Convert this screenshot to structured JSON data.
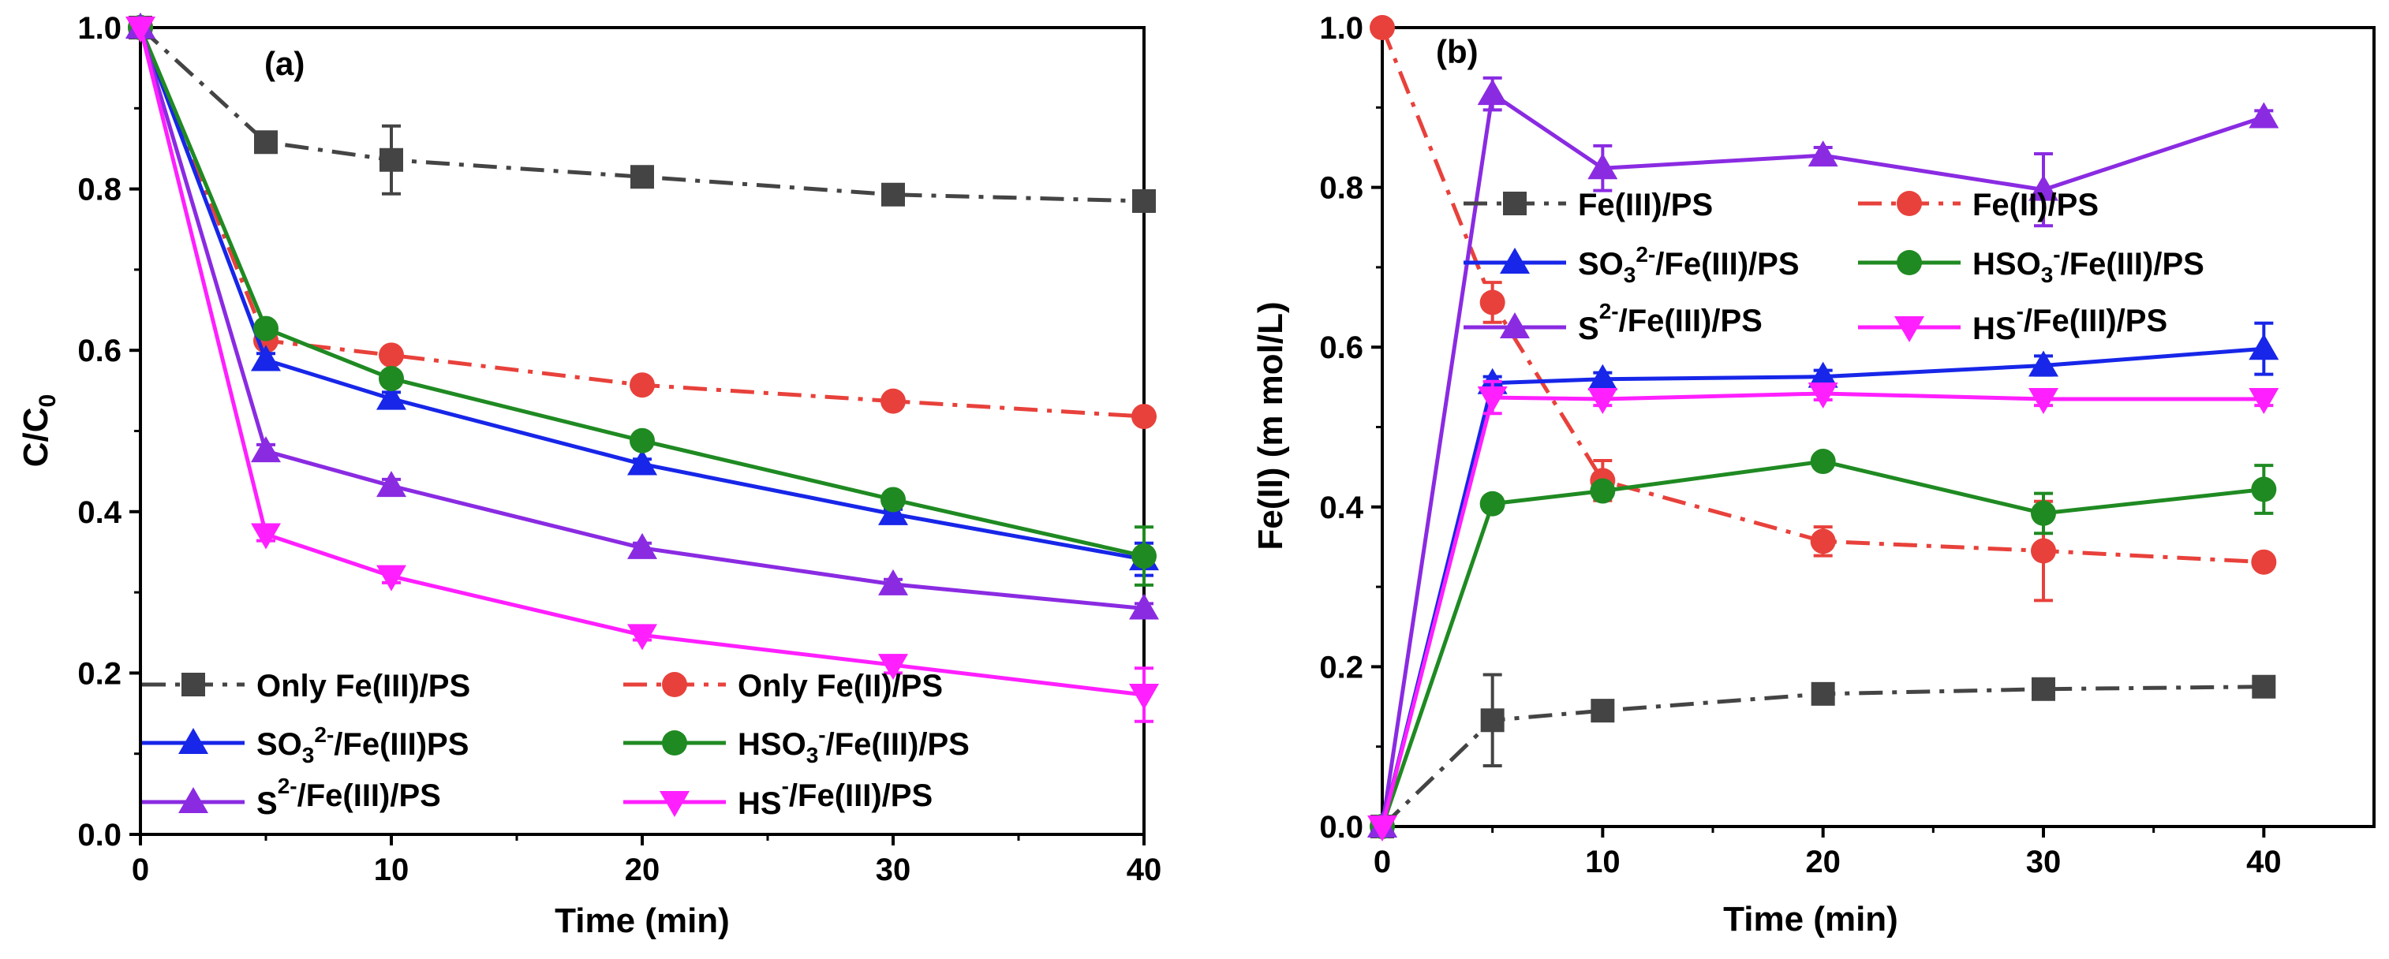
{
  "chart_data": [
    {
      "type": "line",
      "panel_label": "(a)",
      "xlabel": "Time (min)",
      "ylabel": "C/C0",
      "ylabel_parts": {
        "main": "C/C",
        "sub": "0"
      },
      "xlim": [
        0,
        40
      ],
      "ylim": [
        0,
        1.0
      ],
      "xticks": [
        0,
        10,
        20,
        30,
        40
      ],
      "xtick_labels": [
        "0",
        "10",
        "20",
        "30",
        "40"
      ],
      "yticks": [
        0,
        0.2,
        0.4,
        0.6,
        0.8,
        1.0
      ],
      "ytick_labels": [
        "0.0",
        "0.2",
        "0.4",
        "0.6",
        "0.8",
        "1.0"
      ],
      "legend_position": "bottom-left",
      "series": [
        {
          "id": "a_fe3",
          "name": "Only Fe(III)/PS",
          "name_parts": [
            [
              "Only Fe(III)/PS",
              ""
            ]
          ],
          "color": "#444444",
          "marker": "square",
          "dash": "dashdot",
          "x": [
            0,
            5,
            10,
            20,
            30,
            40
          ],
          "y": [
            1.0,
            0.858,
            0.836,
            0.815,
            0.793,
            0.785
          ],
          "err": [
            0,
            0.012,
            0.042,
            0.008,
            0.006,
            0.006
          ]
        },
        {
          "id": "a_fe2",
          "name": "Only Fe(II)/PS",
          "name_parts": [
            [
              "Only Fe(II)/PS",
              ""
            ]
          ],
          "color": "#e8413b",
          "marker": "circle",
          "dash": "dashdot",
          "x": [
            0,
            5,
            10,
            20,
            30,
            40
          ],
          "y": [
            1.0,
            0.612,
            0.594,
            0.557,
            0.537,
            0.518
          ],
          "err": [
            0,
            0.008,
            0.008,
            0.006,
            0.006,
            0.006
          ]
        },
        {
          "id": "a_so3",
          "name": "SO32-/Fe(III)PS",
          "name_parts": [
            [
              "SO",
              ""
            ],
            [
              "3",
              "sub"
            ],
            [
              "2-",
              "sup"
            ],
            [
              "/Fe(III)PS",
              ""
            ]
          ],
          "color": "#1726e8",
          "marker": "triangle-up",
          "dash": "solid",
          "x": [
            0,
            5,
            10,
            20,
            30,
            40
          ],
          "y": [
            1.0,
            0.588,
            0.54,
            0.459,
            0.397,
            0.341
          ],
          "err": [
            0,
            0.008,
            0.008,
            0.006,
            0.006,
            0.02
          ]
        },
        {
          "id": "a_hso3",
          "name": "HSO3-/Fe(III)/PS",
          "name_parts": [
            [
              "HSO",
              ""
            ],
            [
              "3",
              "sub"
            ],
            [
              "-",
              "sup"
            ],
            [
              "/Fe(III)/PS",
              ""
            ]
          ],
          "color": "#1f8a22",
          "marker": "circle",
          "dash": "solid",
          "x": [
            0,
            5,
            10,
            20,
            30,
            40
          ],
          "y": [
            1.0,
            0.627,
            0.565,
            0.488,
            0.415,
            0.345
          ],
          "err": [
            0,
            0.008,
            0.008,
            0.006,
            0.006,
            0.036
          ]
        },
        {
          "id": "a_s2",
          "name": "S2-/Fe(III)/PS",
          "name_parts": [
            [
              "S",
              ""
            ],
            [
              "2-",
              "sup"
            ],
            [
              "/Fe(III)/PS",
              ""
            ]
          ],
          "color": "#8a2be2",
          "marker": "triangle-up",
          "dash": "solid",
          "x": [
            0,
            5,
            10,
            20,
            30,
            40
          ],
          "y": [
            1.0,
            0.475,
            0.432,
            0.355,
            0.31,
            0.28
          ],
          "err": [
            0,
            0.008,
            0.008,
            0.006,
            0.006,
            0.006
          ]
        },
        {
          "id": "a_hs",
          "name": "HS-/Fe(III)/PS",
          "name_parts": [
            [
              "HS",
              ""
            ],
            [
              "-",
              "sup"
            ],
            [
              "/Fe(III)/PS",
              ""
            ]
          ],
          "color": "#ff1fff",
          "marker": "triangle-down",
          "dash": "solid",
          "x": [
            0,
            5,
            10,
            20,
            30,
            40
          ],
          "y": [
            1.0,
            0.372,
            0.32,
            0.247,
            0.21,
            0.173
          ],
          "err": [
            0,
            0.008,
            0.008,
            0.006,
            0.01,
            0.033
          ]
        }
      ]
    },
    {
      "type": "line",
      "panel_label": "(b)",
      "xlabel": "Time (min)",
      "ylabel": "Fe(II) (m mol/L)",
      "xlim": [
        0,
        45
      ],
      "ylim": [
        0,
        1.0
      ],
      "xticks": [
        0,
        10,
        20,
        30,
        40
      ],
      "xtick_labels": [
        "0",
        "10",
        "20",
        "30",
        "40"
      ],
      "yticks": [
        0,
        0.2,
        0.4,
        0.6,
        0.8,
        1.0
      ],
      "ytick_labels": [
        "0.0",
        "0.2",
        "0.4",
        "0.6",
        "0.8",
        "1.0"
      ],
      "legend_position": "top-left",
      "series": [
        {
          "id": "b_fe3",
          "name": "Fe(III)/PS",
          "name_parts": [
            [
              "Fe(III)/PS",
              ""
            ]
          ],
          "color": "#444444",
          "marker": "square",
          "dash": "dashdot",
          "x": [
            0,
            5,
            10,
            20,
            30,
            40
          ],
          "y": [
            0.0,
            0.133,
            0.145,
            0.166,
            0.172,
            0.175
          ],
          "err": [
            0,
            0.057,
            0.008,
            0.008,
            0.006,
            0.006
          ]
        },
        {
          "id": "b_fe2",
          "name": "Fe(II)/PS",
          "name_parts": [
            [
              "Fe(II)/PS",
              ""
            ]
          ],
          "color": "#e8413b",
          "marker": "circle",
          "dash": "dashdot",
          "x": [
            0,
            5,
            10,
            20,
            30,
            40
          ],
          "y": [
            1.0,
            0.656,
            0.433,
            0.357,
            0.345,
            0.331
          ],
          "err": [
            0,
            0.025,
            0.025,
            0.018,
            0.062,
            0.006
          ]
        },
        {
          "id": "b_so3",
          "name": "SO32-/Fe(III)/PS",
          "name_parts": [
            [
              "SO",
              ""
            ],
            [
              "3",
              "sub"
            ],
            [
              "2-",
              "sup"
            ],
            [
              "/Fe(III)/PS",
              ""
            ]
          ],
          "color": "#1726e8",
          "marker": "triangle-up",
          "dash": "solid",
          "x": [
            0,
            5,
            10,
            20,
            30,
            40
          ],
          "y": [
            0.0,
            0.555,
            0.56,
            0.563,
            0.577,
            0.598
          ],
          "err": [
            0,
            0.008,
            0.008,
            0.008,
            0.012,
            0.032
          ]
        },
        {
          "id": "b_hso3",
          "name": "HSO3-/Fe(III)/PS",
          "name_parts": [
            [
              "HSO",
              ""
            ],
            [
              "3",
              "sub"
            ],
            [
              "-",
              "sup"
            ],
            [
              "/Fe(III)/PS",
              ""
            ]
          ],
          "color": "#1f8a22",
          "marker": "circle",
          "dash": "solid",
          "x": [
            0,
            5,
            10,
            20,
            30,
            40
          ],
          "y": [
            0.0,
            0.404,
            0.42,
            0.457,
            0.392,
            0.422
          ],
          "err": [
            0,
            0.008,
            0.008,
            0.008,
            0.025,
            0.03
          ]
        },
        {
          "id": "b_s2",
          "name": "S2-/Fe(III)/PS",
          "name_parts": [
            [
              "S",
              ""
            ],
            [
              "2-",
              "sup"
            ],
            [
              "/Fe(III)/PS",
              ""
            ]
          ],
          "color": "#8a2be2",
          "marker": "triangle-up",
          "dash": "solid",
          "x": [
            0,
            5,
            10,
            20,
            30,
            40
          ],
          "y": [
            0.0,
            0.917,
            0.824,
            0.84,
            0.797,
            0.888
          ],
          "err": [
            0,
            0.02,
            0.028,
            0.01,
            0.045,
            0.008
          ]
        },
        {
          "id": "b_hs",
          "name": "HS-/Fe(III)/PS",
          "name_parts": [
            [
              "HS",
              ""
            ],
            [
              "-",
              "sup"
            ],
            [
              "/Fe(III)/PS",
              ""
            ]
          ],
          "color": "#ff1fff",
          "marker": "triangle-down",
          "dash": "solid",
          "x": [
            0,
            5,
            10,
            20,
            30,
            40
          ],
          "y": [
            0.0,
            0.537,
            0.535,
            0.542,
            0.535,
            0.535
          ],
          "err": [
            0,
            0.02,
            0.008,
            0.008,
            0.008,
            0.008
          ]
        }
      ]
    }
  ]
}
